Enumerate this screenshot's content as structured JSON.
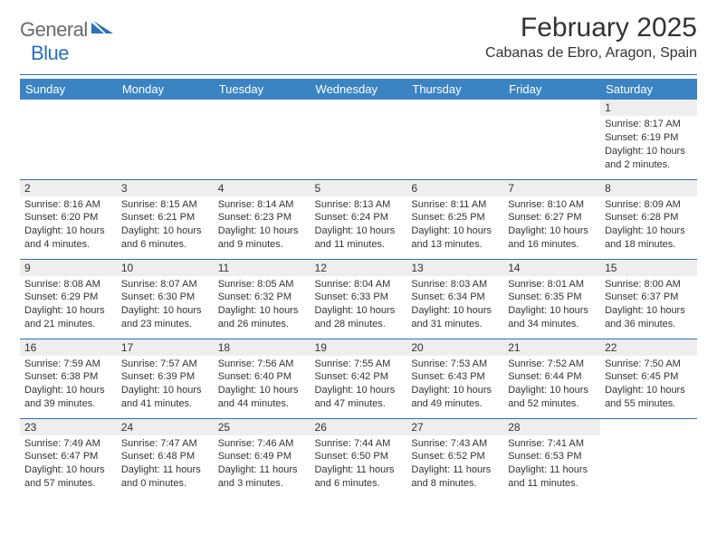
{
  "brand": {
    "name_part1": "General",
    "name_part2": "Blue",
    "text_color": "#6a6a6a",
    "accent_color": "#2a71b8"
  },
  "header": {
    "title": "February 2025",
    "location": "Cabanas de Ebro, Aragon, Spain"
  },
  "colors": {
    "header_row_bg": "#3b84c4",
    "header_row_text": "#ffffff",
    "daynum_bg": "#eeeeee",
    "rule": "#2a71b8",
    "text": "#333333",
    "background": "#ffffff"
  },
  "days_of_week": [
    "Sunday",
    "Monday",
    "Tuesday",
    "Wednesday",
    "Thursday",
    "Friday",
    "Saturday"
  ],
  "weeks": [
    [
      {
        "blank": true
      },
      {
        "blank": true
      },
      {
        "blank": true
      },
      {
        "blank": true
      },
      {
        "blank": true
      },
      {
        "blank": true
      },
      {
        "day": "1",
        "sunrise": "Sunrise: 8:17 AM",
        "sunset": "Sunset: 6:19 PM",
        "daylight": "Daylight: 10 hours and 2 minutes."
      }
    ],
    [
      {
        "day": "2",
        "sunrise": "Sunrise: 8:16 AM",
        "sunset": "Sunset: 6:20 PM",
        "daylight": "Daylight: 10 hours and 4 minutes."
      },
      {
        "day": "3",
        "sunrise": "Sunrise: 8:15 AM",
        "sunset": "Sunset: 6:21 PM",
        "daylight": "Daylight: 10 hours and 6 minutes."
      },
      {
        "day": "4",
        "sunrise": "Sunrise: 8:14 AM",
        "sunset": "Sunset: 6:23 PM",
        "daylight": "Daylight: 10 hours and 9 minutes."
      },
      {
        "day": "5",
        "sunrise": "Sunrise: 8:13 AM",
        "sunset": "Sunset: 6:24 PM",
        "daylight": "Daylight: 10 hours and 11 minutes."
      },
      {
        "day": "6",
        "sunrise": "Sunrise: 8:11 AM",
        "sunset": "Sunset: 6:25 PM",
        "daylight": "Daylight: 10 hours and 13 minutes."
      },
      {
        "day": "7",
        "sunrise": "Sunrise: 8:10 AM",
        "sunset": "Sunset: 6:27 PM",
        "daylight": "Daylight: 10 hours and 16 minutes."
      },
      {
        "day": "8",
        "sunrise": "Sunrise: 8:09 AM",
        "sunset": "Sunset: 6:28 PM",
        "daylight": "Daylight: 10 hours and 18 minutes."
      }
    ],
    [
      {
        "day": "9",
        "sunrise": "Sunrise: 8:08 AM",
        "sunset": "Sunset: 6:29 PM",
        "daylight": "Daylight: 10 hours and 21 minutes."
      },
      {
        "day": "10",
        "sunrise": "Sunrise: 8:07 AM",
        "sunset": "Sunset: 6:30 PM",
        "daylight": "Daylight: 10 hours and 23 minutes."
      },
      {
        "day": "11",
        "sunrise": "Sunrise: 8:05 AM",
        "sunset": "Sunset: 6:32 PM",
        "daylight": "Daylight: 10 hours and 26 minutes."
      },
      {
        "day": "12",
        "sunrise": "Sunrise: 8:04 AM",
        "sunset": "Sunset: 6:33 PM",
        "daylight": "Daylight: 10 hours and 28 minutes."
      },
      {
        "day": "13",
        "sunrise": "Sunrise: 8:03 AM",
        "sunset": "Sunset: 6:34 PM",
        "daylight": "Daylight: 10 hours and 31 minutes."
      },
      {
        "day": "14",
        "sunrise": "Sunrise: 8:01 AM",
        "sunset": "Sunset: 6:35 PM",
        "daylight": "Daylight: 10 hours and 34 minutes."
      },
      {
        "day": "15",
        "sunrise": "Sunrise: 8:00 AM",
        "sunset": "Sunset: 6:37 PM",
        "daylight": "Daylight: 10 hours and 36 minutes."
      }
    ],
    [
      {
        "day": "16",
        "sunrise": "Sunrise: 7:59 AM",
        "sunset": "Sunset: 6:38 PM",
        "daylight": "Daylight: 10 hours and 39 minutes."
      },
      {
        "day": "17",
        "sunrise": "Sunrise: 7:57 AM",
        "sunset": "Sunset: 6:39 PM",
        "daylight": "Daylight: 10 hours and 41 minutes."
      },
      {
        "day": "18",
        "sunrise": "Sunrise: 7:56 AM",
        "sunset": "Sunset: 6:40 PM",
        "daylight": "Daylight: 10 hours and 44 minutes."
      },
      {
        "day": "19",
        "sunrise": "Sunrise: 7:55 AM",
        "sunset": "Sunset: 6:42 PM",
        "daylight": "Daylight: 10 hours and 47 minutes."
      },
      {
        "day": "20",
        "sunrise": "Sunrise: 7:53 AM",
        "sunset": "Sunset: 6:43 PM",
        "daylight": "Daylight: 10 hours and 49 minutes."
      },
      {
        "day": "21",
        "sunrise": "Sunrise: 7:52 AM",
        "sunset": "Sunset: 6:44 PM",
        "daylight": "Daylight: 10 hours and 52 minutes."
      },
      {
        "day": "22",
        "sunrise": "Sunrise: 7:50 AM",
        "sunset": "Sunset: 6:45 PM",
        "daylight": "Daylight: 10 hours and 55 minutes."
      }
    ],
    [
      {
        "day": "23",
        "sunrise": "Sunrise: 7:49 AM",
        "sunset": "Sunset: 6:47 PM",
        "daylight": "Daylight: 10 hours and 57 minutes."
      },
      {
        "day": "24",
        "sunrise": "Sunrise: 7:47 AM",
        "sunset": "Sunset: 6:48 PM",
        "daylight": "Daylight: 11 hours and 0 minutes."
      },
      {
        "day": "25",
        "sunrise": "Sunrise: 7:46 AM",
        "sunset": "Sunset: 6:49 PM",
        "daylight": "Daylight: 11 hours and 3 minutes."
      },
      {
        "day": "26",
        "sunrise": "Sunrise: 7:44 AM",
        "sunset": "Sunset: 6:50 PM",
        "daylight": "Daylight: 11 hours and 6 minutes."
      },
      {
        "day": "27",
        "sunrise": "Sunrise: 7:43 AM",
        "sunset": "Sunset: 6:52 PM",
        "daylight": "Daylight: 11 hours and 8 minutes."
      },
      {
        "day": "28",
        "sunrise": "Sunrise: 7:41 AM",
        "sunset": "Sunset: 6:53 PM",
        "daylight": "Daylight: 11 hours and 11 minutes."
      },
      {
        "blank": true
      }
    ]
  ]
}
